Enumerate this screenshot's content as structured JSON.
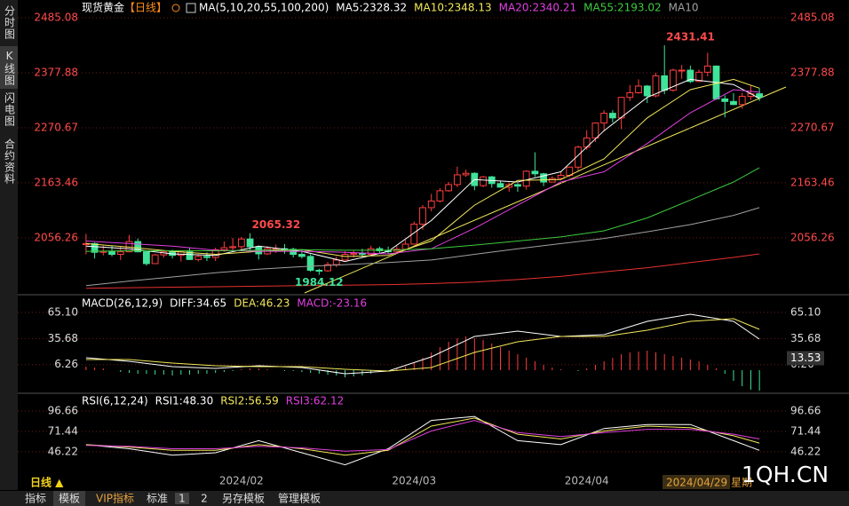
{
  "sidebar": [
    "分时图",
    "K线图",
    "闪电图",
    "合约资料"
  ],
  "chart_data": [
    {
      "type": "candlestick",
      "title": "现货黄金",
      "period": "【日线】",
      "indicator": "MA(5,10,20,55,100,200)",
      "up_color": "#ff3d3d",
      "down_color": "#3fe39a",
      "tick_color": "#ff4a4a",
      "grid": true,
      "ylim": [
        1954,
        2499
      ],
      "yticks": [
        2485.08,
        2377.88,
        2270.67,
        2163.46,
        2056.26
      ],
      "categories": [
        null,
        null,
        null,
        null,
        null,
        null,
        null,
        null,
        null,
        null,
        null,
        null,
        null,
        null,
        null,
        null,
        null,
        null,
        "2024/02",
        null,
        null,
        null,
        null,
        null,
        null,
        null,
        null,
        null,
        null,
        null,
        null,
        null,
        null,
        null,
        null,
        null,
        null,
        null,
        "2024/03",
        null,
        null,
        null,
        null,
        null,
        null,
        null,
        null,
        null,
        null,
        null,
        null,
        null,
        null,
        null,
        null,
        null,
        null,
        null,
        "2024/04",
        null,
        null,
        null,
        null,
        null,
        null,
        null,
        null,
        null,
        null,
        null,
        null,
        null,
        null,
        null,
        null,
        null,
        null,
        null,
        null
      ],
      "open": [
        2043,
        2045,
        2028,
        2030,
        2024,
        2029,
        2049,
        2029,
        2006,
        2023,
        2029,
        2022,
        2029,
        2014,
        2020,
        2018,
        2033,
        2037,
        2039,
        2054,
        2039,
        2025,
        2035,
        2035,
        2034,
        2024,
        2020,
        1993,
        1992,
        2004,
        2013,
        2024,
        2026,
        2024,
        2035,
        2031,
        2030,
        2034,
        2044,
        2083,
        2115,
        2128,
        2148,
        2160,
        2179,
        2182,
        2158,
        2175,
        2162,
        2155,
        2160,
        2157,
        2186,
        2181,
        2165,
        2172,
        2178,
        2194,
        2233,
        2251,
        2280,
        2299,
        2290,
        2330,
        2339,
        2352,
        2333,
        2372,
        2344,
        2383,
        2383,
        2361,
        2379,
        2391,
        2327,
        2322,
        2316,
        2332,
        2337
      ],
      "high": [
        2064,
        2047,
        2041,
        2040,
        2040,
        2062,
        2055,
        2031,
        2025,
        2032,
        2033,
        2032,
        2037,
        2024,
        2028,
        2037,
        2049,
        2056,
        2058,
        2065.32,
        2041,
        2040,
        2043,
        2044,
        2037,
        2033,
        2024,
        1996,
        2009,
        2020,
        2030,
        2032,
        2035,
        2041,
        2039,
        2039,
        2040,
        2052,
        2088,
        2120,
        2142,
        2153,
        2165,
        2195,
        2189,
        2184,
        2177,
        2177,
        2168,
        2164,
        2163,
        2188,
        2223,
        2183,
        2176,
        2185,
        2195,
        2236,
        2266,
        2281,
        2305,
        2305,
        2331,
        2354,
        2365,
        2354,
        2378,
        2431.41,
        2386,
        2393,
        2392,
        2384,
        2417,
        2392,
        2334,
        2338,
        2339,
        2353,
        2348
      ],
      "low": [
        2024,
        2016,
        2022,
        2020,
        2013,
        2028,
        2028,
        2002,
        2005,
        2018,
        2016,
        2010,
        2013,
        2010,
        2011,
        2011,
        2029,
        2031,
        2030,
        2031,
        2014,
        2023,
        2027,
        2025,
        2018,
        2016,
        1990,
        1984.12,
        1990,
        1999,
        2013,
        2018,
        2017,
        2021,
        2026,
        2024,
        2025,
        2031,
        2043,
        2072,
        2108,
        2125,
        2146,
        2155,
        2175,
        2149,
        2155,
        2154,
        2154,
        2146,
        2146,
        2150,
        2175,
        2157,
        2164,
        2169,
        2174,
        2187,
        2228,
        2243,
        2265,
        2281,
        2268,
        2323,
        2337,
        2319,
        2330,
        2336,
        2341,
        2366,
        2358,
        2360,
        2371,
        2325,
        2291,
        2315,
        2308,
        2325,
        2323
      ],
      "close": [
        2045,
        2028,
        2030,
        2024,
        2029,
        2049,
        2029,
        2006,
        2023,
        2029,
        2022,
        2029,
        2014,
        2020,
        2018,
        2033,
        2037,
        2039,
        2054,
        2039,
        2025,
        2035,
        2035,
        2034,
        2024,
        2020,
        1993,
        1992,
        2004,
        2013,
        2024,
        2026,
        2024,
        2035,
        2031,
        2030,
        2034,
        2044,
        2083,
        2115,
        2128,
        2148,
        2160,
        2179,
        2182,
        2158,
        2175,
        2162,
        2155,
        2160,
        2157,
        2186,
        2181,
        2165,
        2172,
        2178,
        2194,
        2233,
        2251,
        2280,
        2299,
        2290,
        2330,
        2339,
        2352,
        2333,
        2372,
        2344,
        2383,
        2383,
        2361,
        2379,
        2391,
        2327,
        2322,
        2316,
        2332,
        2337,
        2330
      ],
      "line_x": [
        0,
        5,
        10,
        15,
        20,
        25,
        30,
        35,
        40,
        45,
        50,
        55,
        60,
        65,
        70,
        75,
        78
      ],
      "lines": [
        {
          "name": "MA5:2328.32",
          "color": "#ffffff",
          "values": [
            2040,
            2035,
            2025,
            2022,
            2040,
            2030,
            2010,
            2030,
            2090,
            2170,
            2165,
            2185,
            2265,
            2330,
            2365,
            2355,
            2328
          ]
        },
        {
          "name": "MA10:2348.13",
          "color": "#f2e85a",
          "values": [
            2045,
            2038,
            2030,
            2024,
            2030,
            2033,
            2020,
            2022,
            2050,
            2120,
            2168,
            2170,
            2210,
            2290,
            2345,
            2365,
            2348
          ]
        },
        {
          "name": "MA20:2340.21",
          "color": "#e040e0",
          "values": [
            2050,
            2045,
            2040,
            2032,
            2030,
            2030,
            2028,
            2025,
            2035,
            2075,
            2120,
            2165,
            2185,
            2240,
            2300,
            2345,
            2340
          ]
        },
        {
          "name": "MA55:2193.02",
          "color": "#3ecb3e",
          "values": [
            2030,
            2031,
            2031,
            2031,
            2032,
            2033,
            2032,
            2032,
            2035,
            2042,
            2050,
            2058,
            2070,
            2095,
            2130,
            2165,
            2193
          ]
        },
        {
          "name": "MA10",
          "color": "#a0a0a0",
          "values": [
            1963,
            1972,
            1980,
            1988,
            1995,
            2000,
            2004,
            2008,
            2013,
            2024,
            2035,
            2045,
            2055,
            2068,
            2082,
            2100,
            2115
          ]
        },
        {
          "color": "#e83030",
          "values": [
            1958,
            1959,
            1960,
            1961,
            1962,
            1963,
            1964,
            1965,
            1967,
            1970,
            1975,
            1981,
            1990,
            1998,
            2008,
            2018,
            2025
          ]
        }
      ],
      "markers": [
        {
          "x": 19,
          "value": 2065.32,
          "color": "#ff4a4a"
        },
        {
          "x": 27,
          "value": 1984.12,
          "color": "#3fe39a"
        },
        {
          "x": 67,
          "value": 2431.41,
          "color": "#ff4a4a"
        }
      ]
    },
    {
      "type": "macd",
      "title": "MACD(26,12,9)",
      "tick_color": "#dddddd",
      "grid": true,
      "ylim": [
        -24,
        79
      ],
      "yticks": [
        {
          "value": 65.1,
          "label": "65.10"
        },
        35.68,
        6.26
      ],
      "line_x": [
        0,
        5,
        10,
        15,
        20,
        25,
        30,
        35,
        40,
        45,
        50,
        55,
        60,
        65,
        70,
        75,
        78
      ],
      "lines": [
        {
          "name": "DIFF:34.65",
          "color": "#ffffff",
          "values": [
            14,
            10,
            4,
            2,
            5,
            3,
            -4,
            -1,
            15,
            38,
            44,
            38,
            40,
            55,
            63,
            55,
            35
          ]
        },
        {
          "name": "DEA:46.23",
          "color": "#f2e85a",
          "values": [
            12,
            12,
            8,
            5,
            4,
            4,
            1,
            -1,
            3,
            20,
            32,
            38,
            38,
            45,
            55,
            58,
            46
          ]
        }
      ],
      "histogram": {
        "name": "MACD:-23.16",
        "color": "#e040e0",
        "up_color": "#ff3d3d",
        "down_color": "#3fe39a",
        "values": [
          4,
          3,
          2,
          0,
          -2,
          -3,
          -4,
          -4,
          -5,
          -5,
          -6,
          -5,
          -5,
          -4,
          -4,
          -3,
          -2,
          -1,
          1,
          2,
          2,
          1,
          0,
          -1,
          -1,
          -2,
          -3,
          -4,
          -5,
          -6,
          -8,
          -7,
          -6,
          -4,
          -2,
          0,
          2,
          4,
          8,
          14,
          20,
          26,
          32,
          36,
          38,
          36,
          34,
          30,
          26,
          22,
          18,
          14,
          10,
          6,
          3,
          1,
          0,
          -1,
          2,
          6,
          10,
          14,
          18,
          20,
          21,
          22,
          20,
          18,
          16,
          14,
          12,
          10,
          6,
          2,
          -4,
          -12,
          -18,
          -22,
          -23
        ]
      },
      "cursor_value": 13.53
    },
    {
      "type": "line",
      "title": "RSI(6,12,24)",
      "tick_color": "#dddddd",
      "grid": true,
      "ylim": [
        12,
        111
      ],
      "yticks": [
        96.66,
        71.44,
        46.22
      ],
      "line_x": [
        0,
        5,
        10,
        15,
        20,
        25,
        30,
        35,
        40,
        45,
        50,
        55,
        60,
        65,
        70,
        75,
        78
      ],
      "lines": [
        {
          "name": "RSI1:48.30",
          "color": "#ffffff",
          "values": [
            55,
            50,
            42,
            45,
            60,
            45,
            30,
            50,
            85,
            90,
            60,
            55,
            75,
            80,
            80,
            60,
            48
          ]
        },
        {
          "name": "RSI2:56.59",
          "color": "#f2e85a",
          "values": [
            55,
            52,
            48,
            48,
            55,
            50,
            42,
            48,
            78,
            88,
            68,
            62,
            72,
            78,
            76,
            66,
            57
          ]
        },
        {
          "name": "RSI3:62.12",
          "color": "#e040e0",
          "values": [
            54,
            53,
            50,
            50,
            53,
            51,
            47,
            49,
            72,
            85,
            70,
            65,
            70,
            74,
            74,
            68,
            62
          ]
        }
      ]
    }
  ],
  "period_bar": {
    "label": "日线 ▲",
    "date": "2024/04/29 星期"
  },
  "toolbar": [
    "指标",
    "模板",
    "VIP指标",
    "标准",
    "1",
    "2",
    "另存模板",
    "管理模板"
  ],
  "watermark": "1QH.CN"
}
